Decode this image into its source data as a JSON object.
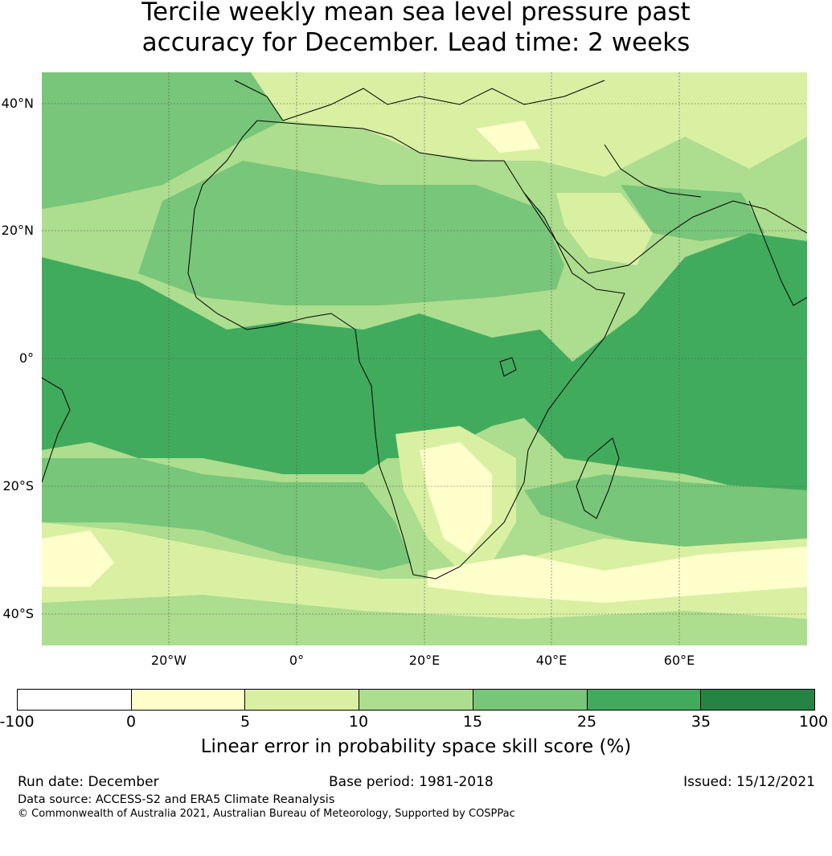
{
  "title": {
    "line1": "Tercile weekly mean sea level pressure past",
    "line2": "accuracy for December. Lead time: 2 weeks"
  },
  "map": {
    "lat_labels": [
      "40°N",
      "20°N",
      "0°",
      "20°S",
      "40°S"
    ],
    "lon_labels": [
      "20°W",
      "0°",
      "20°E",
      "40°E",
      "60°E"
    ]
  },
  "colorbar": {
    "ticks": [
      "-100",
      "0",
      "5",
      "10",
      "15",
      "25",
      "35",
      "100"
    ],
    "colors": [
      "#ffffff",
      "#ffffcc",
      "#d9f0a3",
      "#addd8e",
      "#78c679",
      "#41ab5d",
      "#238443"
    ],
    "label": "Linear error in probability space skill score (%)"
  },
  "footer": {
    "run_date": "Run date: December",
    "base_period": "Base period: 1981-2018",
    "issued": "Issued: 15/12/2021",
    "data_source": "Data source: ACCESS-S2 and ERA5 Climate Reanalysis",
    "copyright": "© Commonwealth of Australia 2021, Australian Bureau of Meteorology, Supported by COSPPac"
  }
}
